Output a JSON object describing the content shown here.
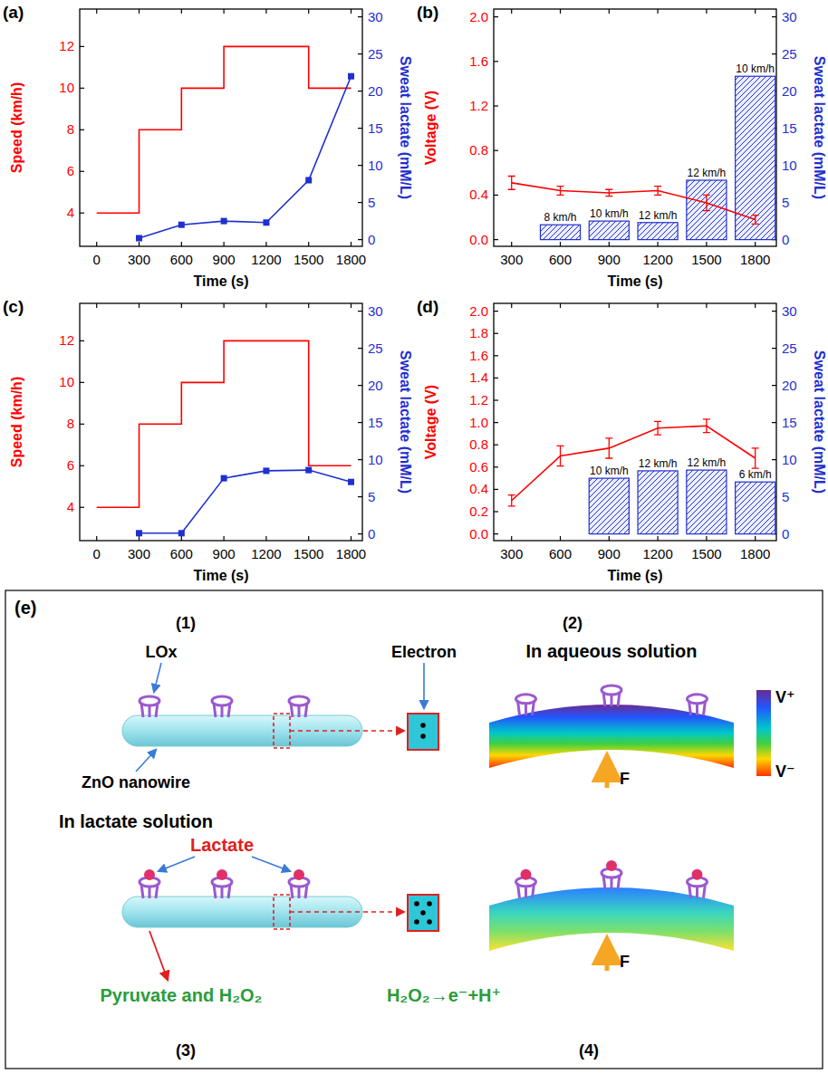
{
  "chart_data": [
    {
      "type": "combo",
      "panel": "(a)",
      "xlabel": "Time (s)",
      "ylabel": "Speed (km/h)",
      "y2label": "Sweat lactate (mM/L)",
      "xlim": [
        -120,
        1880
      ],
      "xticks": [
        0,
        300,
        600,
        900,
        1200,
        1500,
        1800
      ],
      "ylim": [
        2.4,
        13.8
      ],
      "yticks": [
        4,
        6,
        8,
        10,
        12
      ],
      "y2lim": [
        -0.9,
        31.05
      ],
      "y2ticks": [
        0,
        5,
        10,
        15,
        20,
        25,
        30
      ],
      "series": [
        {
          "type": "step",
          "color": "#ff0000",
          "x": [
            0,
            300,
            600,
            900,
            1200,
            1500,
            1800
          ],
          "values": [
            4,
            8,
            10,
            12,
            12,
            10,
            10
          ]
        },
        {
          "type": "line",
          "axis": "y2",
          "marker": "square",
          "color": "#1f2fd0",
          "x": [
            300,
            600,
            900,
            1200,
            1500,
            1800
          ],
          "values": [
            0.2,
            2.0,
            2.5,
            2.3,
            8.0,
            22.0
          ]
        }
      ]
    },
    {
      "type": "combo",
      "panel": "(b)",
      "xlabel": "Time (s)",
      "ylabel": "Voltage (V)",
      "y2label": "Sweat lactate (mM/L)",
      "xlim": [
        190,
        1930
      ],
      "xticks": [
        300,
        600,
        900,
        1200,
        1500,
        1800
      ],
      "ylim": [
        -0.06,
        2.07
      ],
      "yticks": [
        {
          "value": 0,
          "label": "0.0"
        },
        0.4,
        0.8,
        1.2,
        1.6,
        {
          "value": 2,
          "label": "2.0"
        }
      ],
      "y2lim": [
        -0.9,
        31.05
      ],
      "y2ticks": [
        0,
        5,
        10,
        15,
        20,
        25,
        30
      ],
      "series": [
        {
          "type": "bar",
          "axis": "y2",
          "color": "#1f2fd0",
          "x": [
            600,
            900,
            1200,
            1500,
            1800
          ],
          "values": [
            2.0,
            2.5,
            2.3,
            8.0,
            22.0
          ],
          "labels": [
            "8 km/h",
            "10 km/h",
            "12 km/h",
            "12 km/h",
            "10 km/h"
          ]
        },
        {
          "type": "line",
          "color": "#ff0000",
          "x": [
            300,
            600,
            900,
            1200,
            1500,
            1800
          ],
          "values": [
            0.51,
            0.44,
            0.42,
            0.44,
            0.33,
            0.18
          ],
          "errors": [
            0.06,
            0.04,
            0.03,
            0.04,
            0.07,
            0.04
          ]
        }
      ]
    },
    {
      "type": "combo",
      "panel": "(c)",
      "xlabel": "Time (s)",
      "ylabel": "Speed (km/h)",
      "y2label": "Sweat lactate (mM/L)",
      "xlim": [
        -120,
        1880
      ],
      "xticks": [
        0,
        300,
        600,
        900,
        1200,
        1500,
        1800
      ],
      "ylim": [
        2.4,
        13.8
      ],
      "yticks": [
        4,
        6,
        8,
        10,
        12
      ],
      "y2lim": [
        -0.9,
        31.05
      ],
      "y2ticks": [
        0,
        5,
        10,
        15,
        20,
        25,
        30
      ],
      "series": [
        {
          "type": "step",
          "color": "#ff0000",
          "x": [
            0,
            300,
            600,
            900,
            1200,
            1500,
            1800
          ],
          "values": [
            4,
            8,
            10,
            12,
            12,
            6,
            6
          ]
        },
        {
          "type": "line",
          "axis": "y2",
          "marker": "square",
          "color": "#1f2fd0",
          "x": [
            300,
            600,
            900,
            1200,
            1500,
            1800
          ],
          "values": [
            0.1,
            0.1,
            7.5,
            8.5,
            8.6,
            7.0
          ]
        }
      ]
    },
    {
      "type": "combo",
      "panel": "(d)",
      "xlabel": "Time (s)",
      "ylabel": "Voltage (V)",
      "y2label": "Sweat lactate (mM/L)",
      "xlim": [
        190,
        1930
      ],
      "xticks": [
        300,
        600,
        900,
        1200,
        1500,
        1800
      ],
      "ylim": [
        -0.06,
        2.07
      ],
      "yticks": [
        {
          "value": 0,
          "label": "0.0"
        },
        0.2,
        0.4,
        0.6,
        0.8,
        {
          "value": 1,
          "label": "1.0"
        },
        1.2,
        1.4,
        1.6,
        1.8,
        {
          "value": 2,
          "label": "2.0"
        }
      ],
      "y2lim": [
        -0.9,
        31.05
      ],
      "y2ticks": [
        0,
        5,
        10,
        15,
        20,
        25,
        30
      ],
      "series": [
        {
          "type": "bar",
          "axis": "y2",
          "color": "#1f2fd0",
          "x": [
            900,
            1200,
            1500,
            1800
          ],
          "values": [
            7.5,
            8.5,
            8.6,
            7.0
          ],
          "labels": [
            "10 km/h",
            "12 km/h",
            "12 km/h",
            "6 km/h"
          ]
        },
        {
          "type": "line",
          "color": "#ff0000",
          "x": [
            300,
            600,
            900,
            1200,
            1500,
            1800
          ],
          "values": [
            0.3,
            0.7,
            0.77,
            0.95,
            0.97,
            0.68
          ],
          "errors": [
            0.05,
            0.09,
            0.09,
            0.06,
            0.06,
            0.09
          ]
        }
      ]
    }
  ],
  "diagram": {
    "label": "(e)",
    "steps": [
      "(1)",
      "(2)",
      "(3)",
      "(4)"
    ],
    "texts": {
      "lox": "LOx",
      "electron": "Electron",
      "aqueous": "In aqueous solution",
      "nanowire": "ZnO nanowire",
      "lactate_solution": "In lactate solution",
      "lactate": "Lactate",
      "products": "Pyruvate and H₂O₂",
      "reaction": "H₂O₂→e⁻+H⁺",
      "vplus": "V⁺",
      "vminus": "V⁻",
      "force": "F"
    }
  }
}
